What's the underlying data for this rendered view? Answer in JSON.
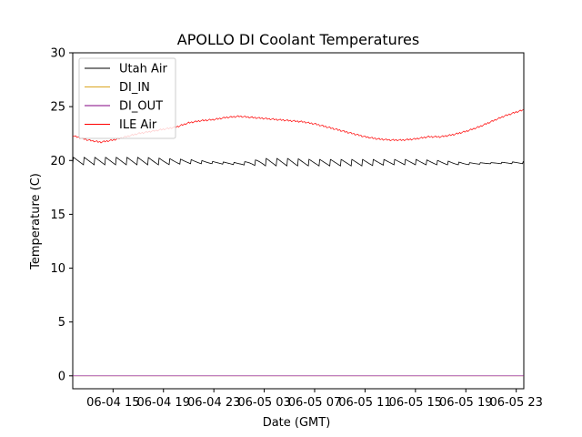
{
  "chart_data": {
    "type": "line",
    "title": "APOLLO DI Coolant Temperatures",
    "xlabel": "Date (GMT)",
    "ylabel": "Temperature (C)",
    "xlim": [
      11.8,
      47.6
    ],
    "ylim": [
      -1.2,
      30
    ],
    "x_unit": "hours since 06-04 00:00 GMT",
    "yticks": [
      0,
      5,
      10,
      15,
      20,
      25,
      30
    ],
    "xticks": [
      {
        "value": 15,
        "label": "06-04 15"
      },
      {
        "value": 19,
        "label": "06-04 19"
      },
      {
        "value": 23,
        "label": "06-04 23"
      },
      {
        "value": 27,
        "label": "06-05 03"
      },
      {
        "value": 31,
        "label": "06-05 07"
      },
      {
        "value": 35,
        "label": "06-05 11"
      },
      {
        "value": 39,
        "label": "06-05 15"
      },
      {
        "value": 43,
        "label": "06-05 19"
      },
      {
        "value": 47,
        "label": "06-05 23"
      }
    ],
    "legend": {
      "placement": "top-left"
    },
    "series": [
      {
        "name": "Utah Air",
        "color": "#000000",
        "style": "sawtooth",
        "x": [
          11.8,
          14.0,
          15.5,
          17.5,
          19.0,
          21.0,
          23.0,
          25.0,
          27.0,
          29.0,
          31.0,
          33.0,
          35.0,
          37.0,
          39.0,
          41.0,
          43.0,
          45.0,
          47.6
        ],
        "low": [
          19.6,
          19.6,
          19.6,
          19.6,
          19.6,
          19.7,
          19.7,
          19.6,
          19.5,
          19.5,
          19.5,
          19.5,
          19.5,
          19.6,
          19.6,
          19.6,
          19.6,
          19.7,
          19.7
        ],
        "high": [
          20.3,
          20.3,
          20.3,
          20.3,
          20.2,
          20.1,
          19.9,
          19.8,
          20.2,
          20.2,
          20.1,
          20.1,
          20.1,
          20.1,
          20.1,
          20.0,
          19.8,
          19.8,
          19.9
        ],
        "cycle_hours": 0.85
      },
      {
        "name": "DI_IN",
        "color": "#DAA520",
        "x": [
          11.8,
          47.6
        ],
        "y": [
          0,
          0
        ]
      },
      {
        "name": "DI_OUT",
        "color": "#800080",
        "x": [
          11.8,
          47.6
        ],
        "y": [
          0,
          0
        ]
      },
      {
        "name": "ILE Air",
        "color": "#ff0000",
        "x": [
          11.8,
          13.0,
          14.0,
          15.0,
          16.0,
          17.0,
          18.0,
          19.0,
          20.0,
          21.0,
          22.0,
          23.0,
          24.0,
          25.0,
          26.0,
          27.0,
          28.0,
          29.0,
          30.0,
          31.0,
          32.0,
          33.0,
          34.0,
          35.0,
          36.0,
          37.0,
          38.0,
          39.0,
          40.0,
          41.0,
          42.0,
          43.0,
          44.0,
          45.0,
          46.0,
          47.0,
          47.6
        ],
        "y": [
          22.3,
          21.9,
          21.7,
          21.9,
          22.2,
          22.5,
          22.7,
          22.9,
          23.1,
          23.5,
          23.7,
          23.8,
          24.0,
          24.1,
          24.0,
          23.9,
          23.8,
          23.7,
          23.6,
          23.4,
          23.1,
          22.8,
          22.5,
          22.2,
          22.0,
          21.9,
          21.9,
          22.0,
          22.2,
          22.2,
          22.4,
          22.7,
          23.1,
          23.6,
          24.1,
          24.5,
          24.7
        ]
      }
    ]
  }
}
